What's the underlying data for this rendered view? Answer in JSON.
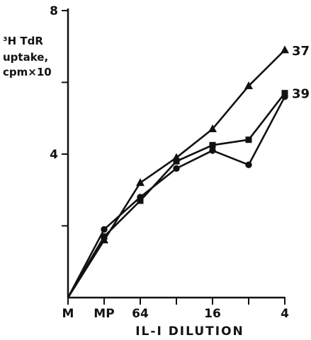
{
  "chart_data": {
    "type": "line",
    "ylabel_lines": [
      "³H TdR",
      "uptake,",
      "cpm×10"
    ],
    "xlabel": "IL-I DILUTION",
    "x_tick_labels": [
      "M",
      "MP",
      "64",
      "",
      "16",
      "",
      "4"
    ],
    "y_tick_labels": [
      "8",
      "4"
    ],
    "y_ticks": [
      0,
      2,
      4,
      6,
      8
    ],
    "ylim": [
      0,
      8
    ],
    "grid": false,
    "legend": "none",
    "series": [
      {
        "name": "37",
        "marker": "triangle",
        "values": [
          0,
          1.6,
          3.2,
          3.9,
          4.7,
          5.9,
          6.9
        ]
      },
      {
        "name": "39",
        "marker": "square",
        "values": [
          0,
          1.7,
          2.7,
          3.8,
          4.25,
          4.4,
          5.7
        ]
      },
      {
        "name": "",
        "marker": "circle",
        "values": [
          0,
          1.9,
          2.8,
          3.6,
          4.1,
          3.7,
          5.6
        ]
      }
    ]
  }
}
